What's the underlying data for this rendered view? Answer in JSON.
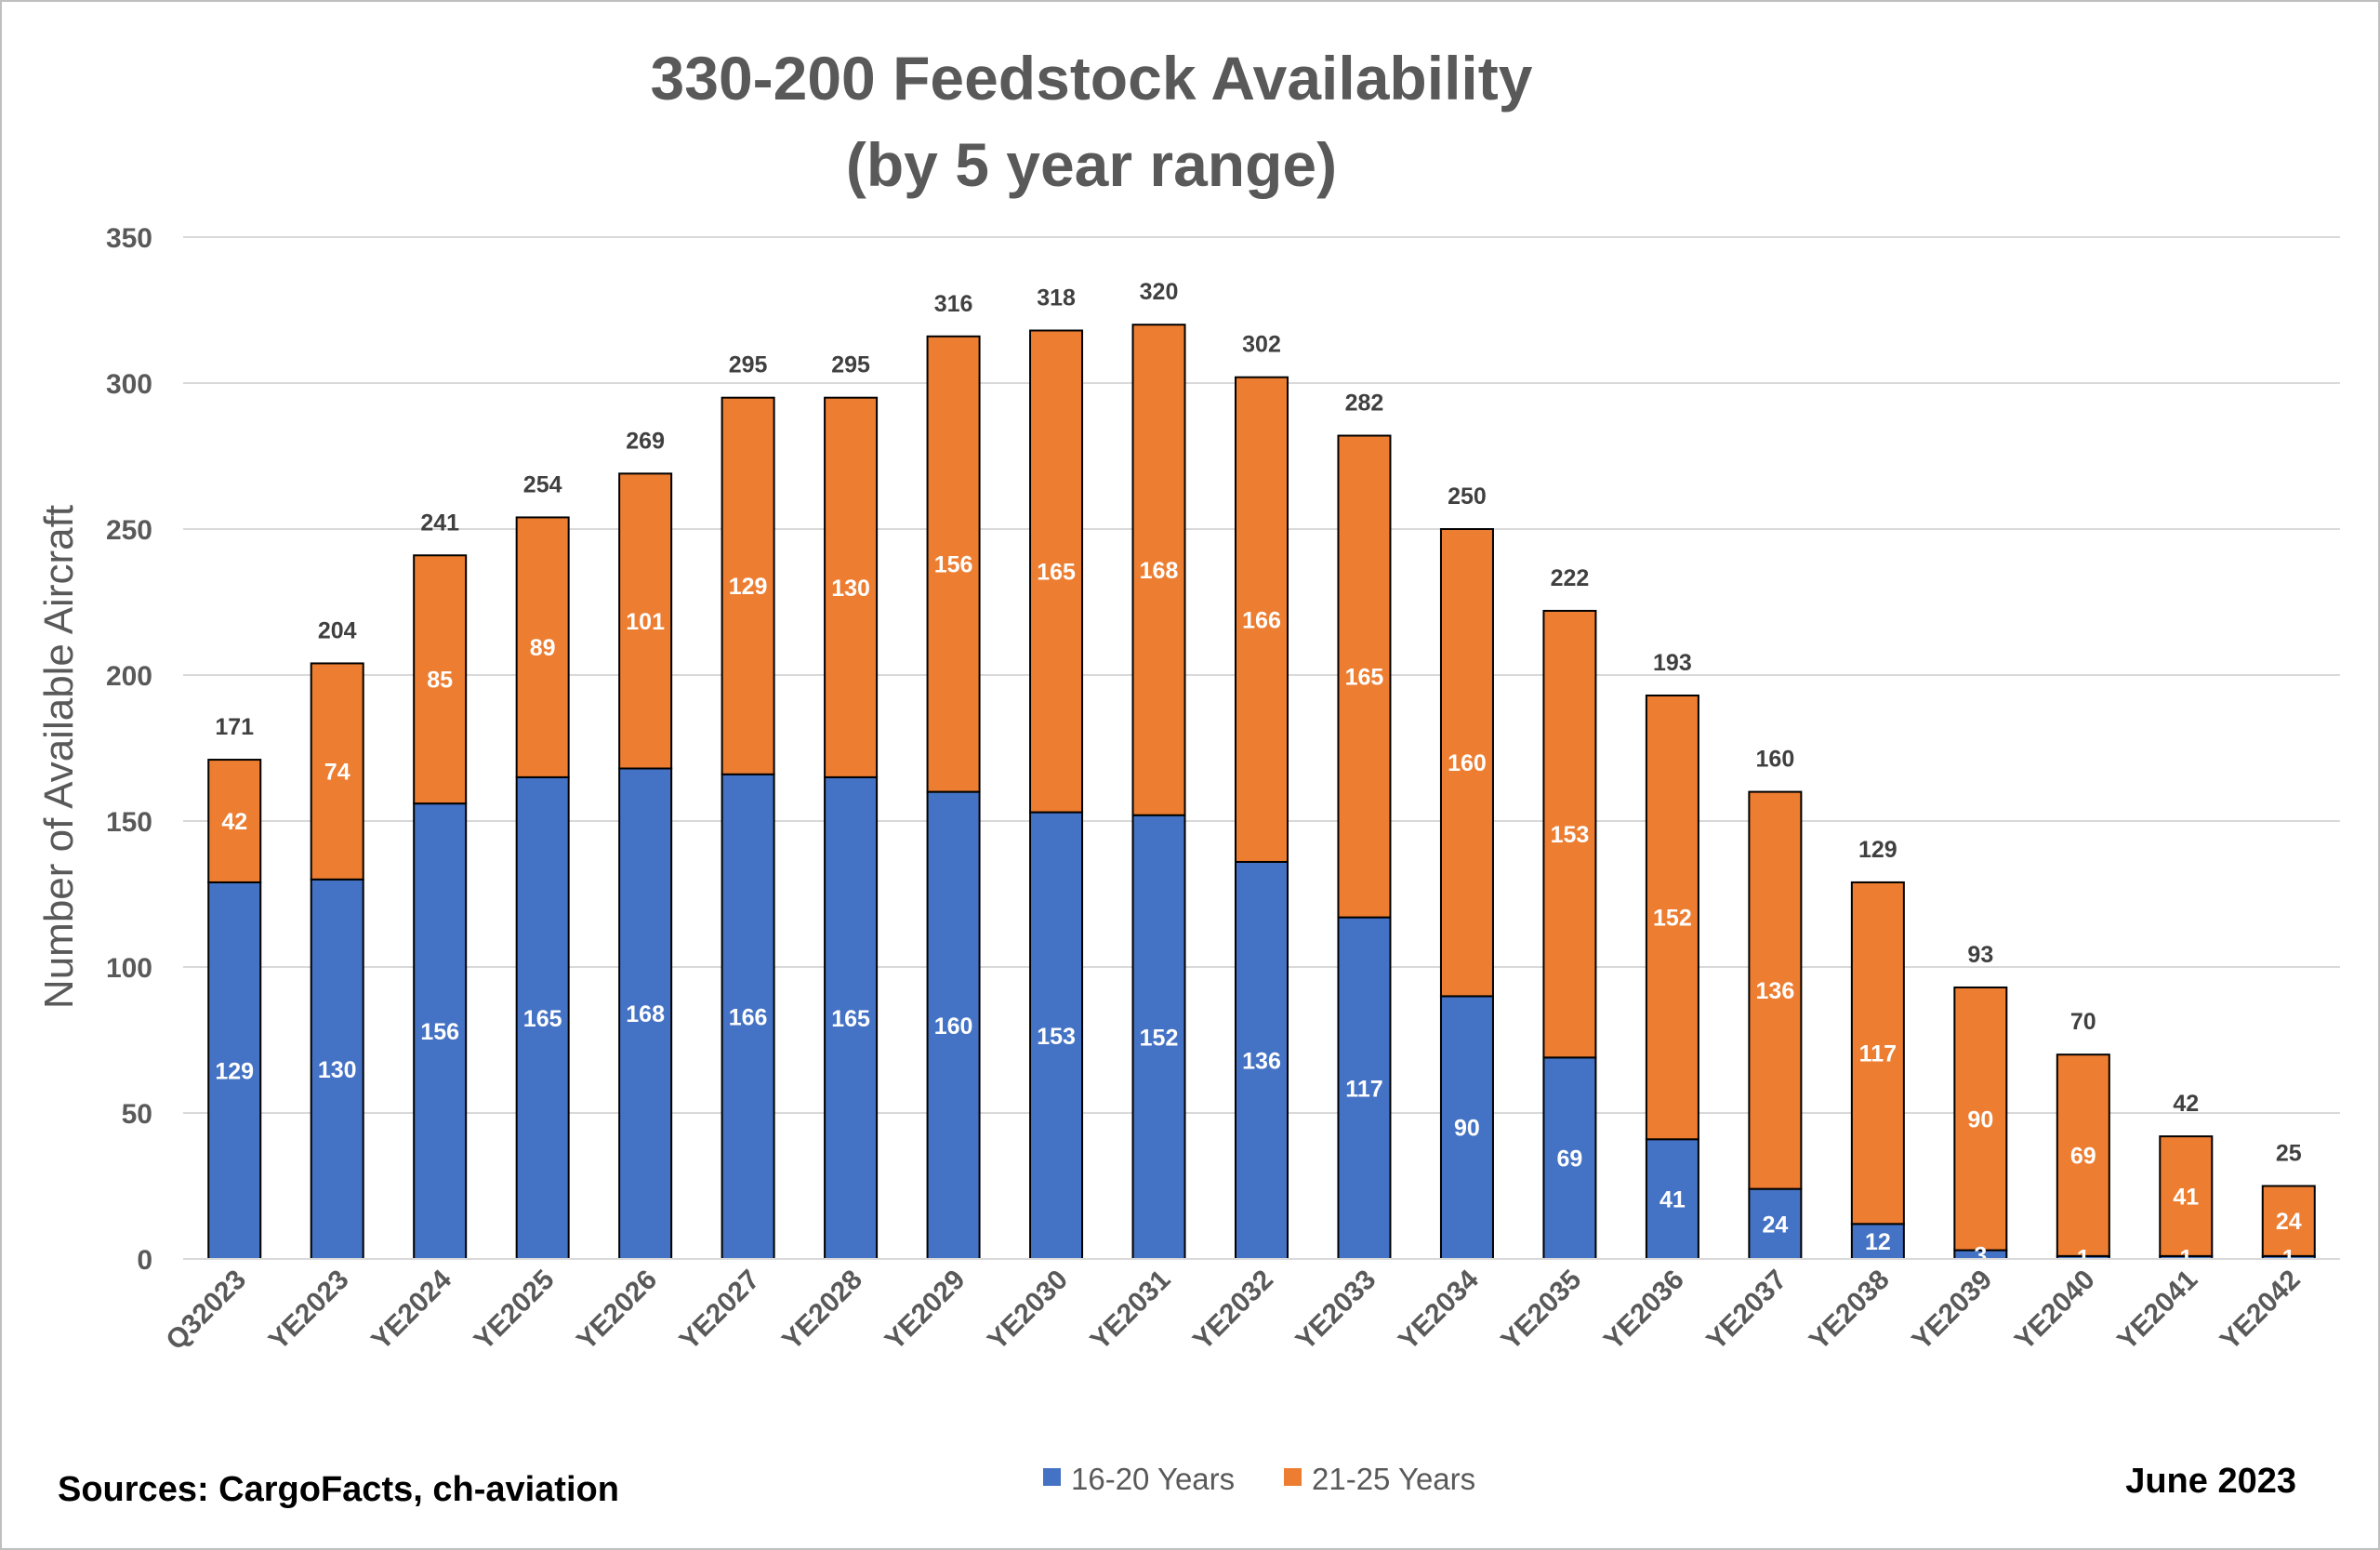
{
  "chart_data": {
    "type": "bar",
    "stacked": true,
    "title_lines": [
      "330-200 Feedstock Availability",
      "(by 5 year range)"
    ],
    "ylabel": "Number of Available Aircraft",
    "xlabel": "",
    "ylim": [
      0,
      350
    ],
    "yticks": [
      0,
      50,
      100,
      150,
      200,
      250,
      300,
      350
    ],
    "grid": true,
    "legend_position": "bottom-center",
    "categories": [
      "Q32023",
      "YE2023",
      "YE2024",
      "YE2025",
      "YE2026",
      "YE2027",
      "YE2028",
      "YE2029",
      "YE2030",
      "YE2031",
      "YE2032",
      "YE2033",
      "YE2034",
      "YE2035",
      "YE2036",
      "YE2037",
      "YE2038",
      "YE2039",
      "YE2040",
      "YE2041",
      "YE2042"
    ],
    "series": [
      {
        "name": "16-20 Years",
        "color": "#4472C4",
        "values": [
          129,
          130,
          156,
          165,
          168,
          166,
          165,
          160,
          153,
          152,
          136,
          117,
          90,
          69,
          41,
          24,
          12,
          3,
          1,
          1,
          1
        ]
      },
      {
        "name": "21-25 Years",
        "color": "#ED7D31",
        "values": [
          42,
          74,
          85,
          89,
          101,
          129,
          130,
          156,
          165,
          168,
          166,
          165,
          160,
          153,
          152,
          136,
          117,
          90,
          69,
          41,
          24
        ]
      }
    ],
    "totals": [
      171,
      204,
      241,
      254,
      269,
      295,
      295,
      316,
      318,
      320,
      302,
      282,
      250,
      222,
      193,
      160,
      129,
      93,
      70,
      42,
      25
    ]
  },
  "footer": {
    "source": "Sources: CargoFacts, ch-aviation",
    "date": "June 2023"
  }
}
